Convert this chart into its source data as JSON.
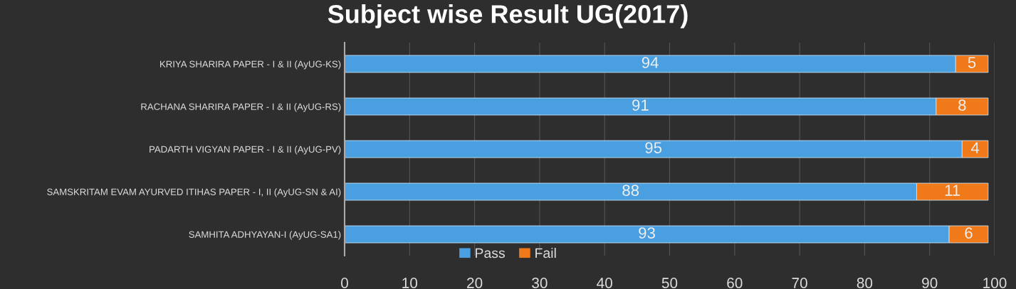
{
  "chart_data": {
    "type": "bar",
    "orientation": "horizontal",
    "stacked": true,
    "title": "Subject wise Result UG(2017)",
    "categories": [
      "KRIYA SHARIRA PAPER - I & II (AyUG-KS)",
      "RACHANA SHARIRA PAPER - I & II (AyUG-RS)",
      "PADARTH VIGYAN PAPER - I & II (AyUG-PV)",
      "SAMSKRITAM EVAM AYURVED ITIHAS PAPER - I, II (AyUG-SN & AI)",
      "SAMHITA ADHYAYAN-I (AyUG-SA1)"
    ],
    "series": [
      {
        "name": "Pass",
        "color": "#4a9fe0",
        "values": [
          94,
          91,
          95,
          88,
          93
        ]
      },
      {
        "name": "Fail",
        "color": "#f07a1a",
        "values": [
          5,
          8,
          4,
          11,
          6
        ]
      }
    ],
    "xlim": [
      0,
      100
    ],
    "xticks": [
      0,
      10,
      20,
      30,
      40,
      50,
      60,
      70,
      80,
      90,
      100
    ],
    "grid": "x",
    "legend": "bottom",
    "data_labels": true
  }
}
